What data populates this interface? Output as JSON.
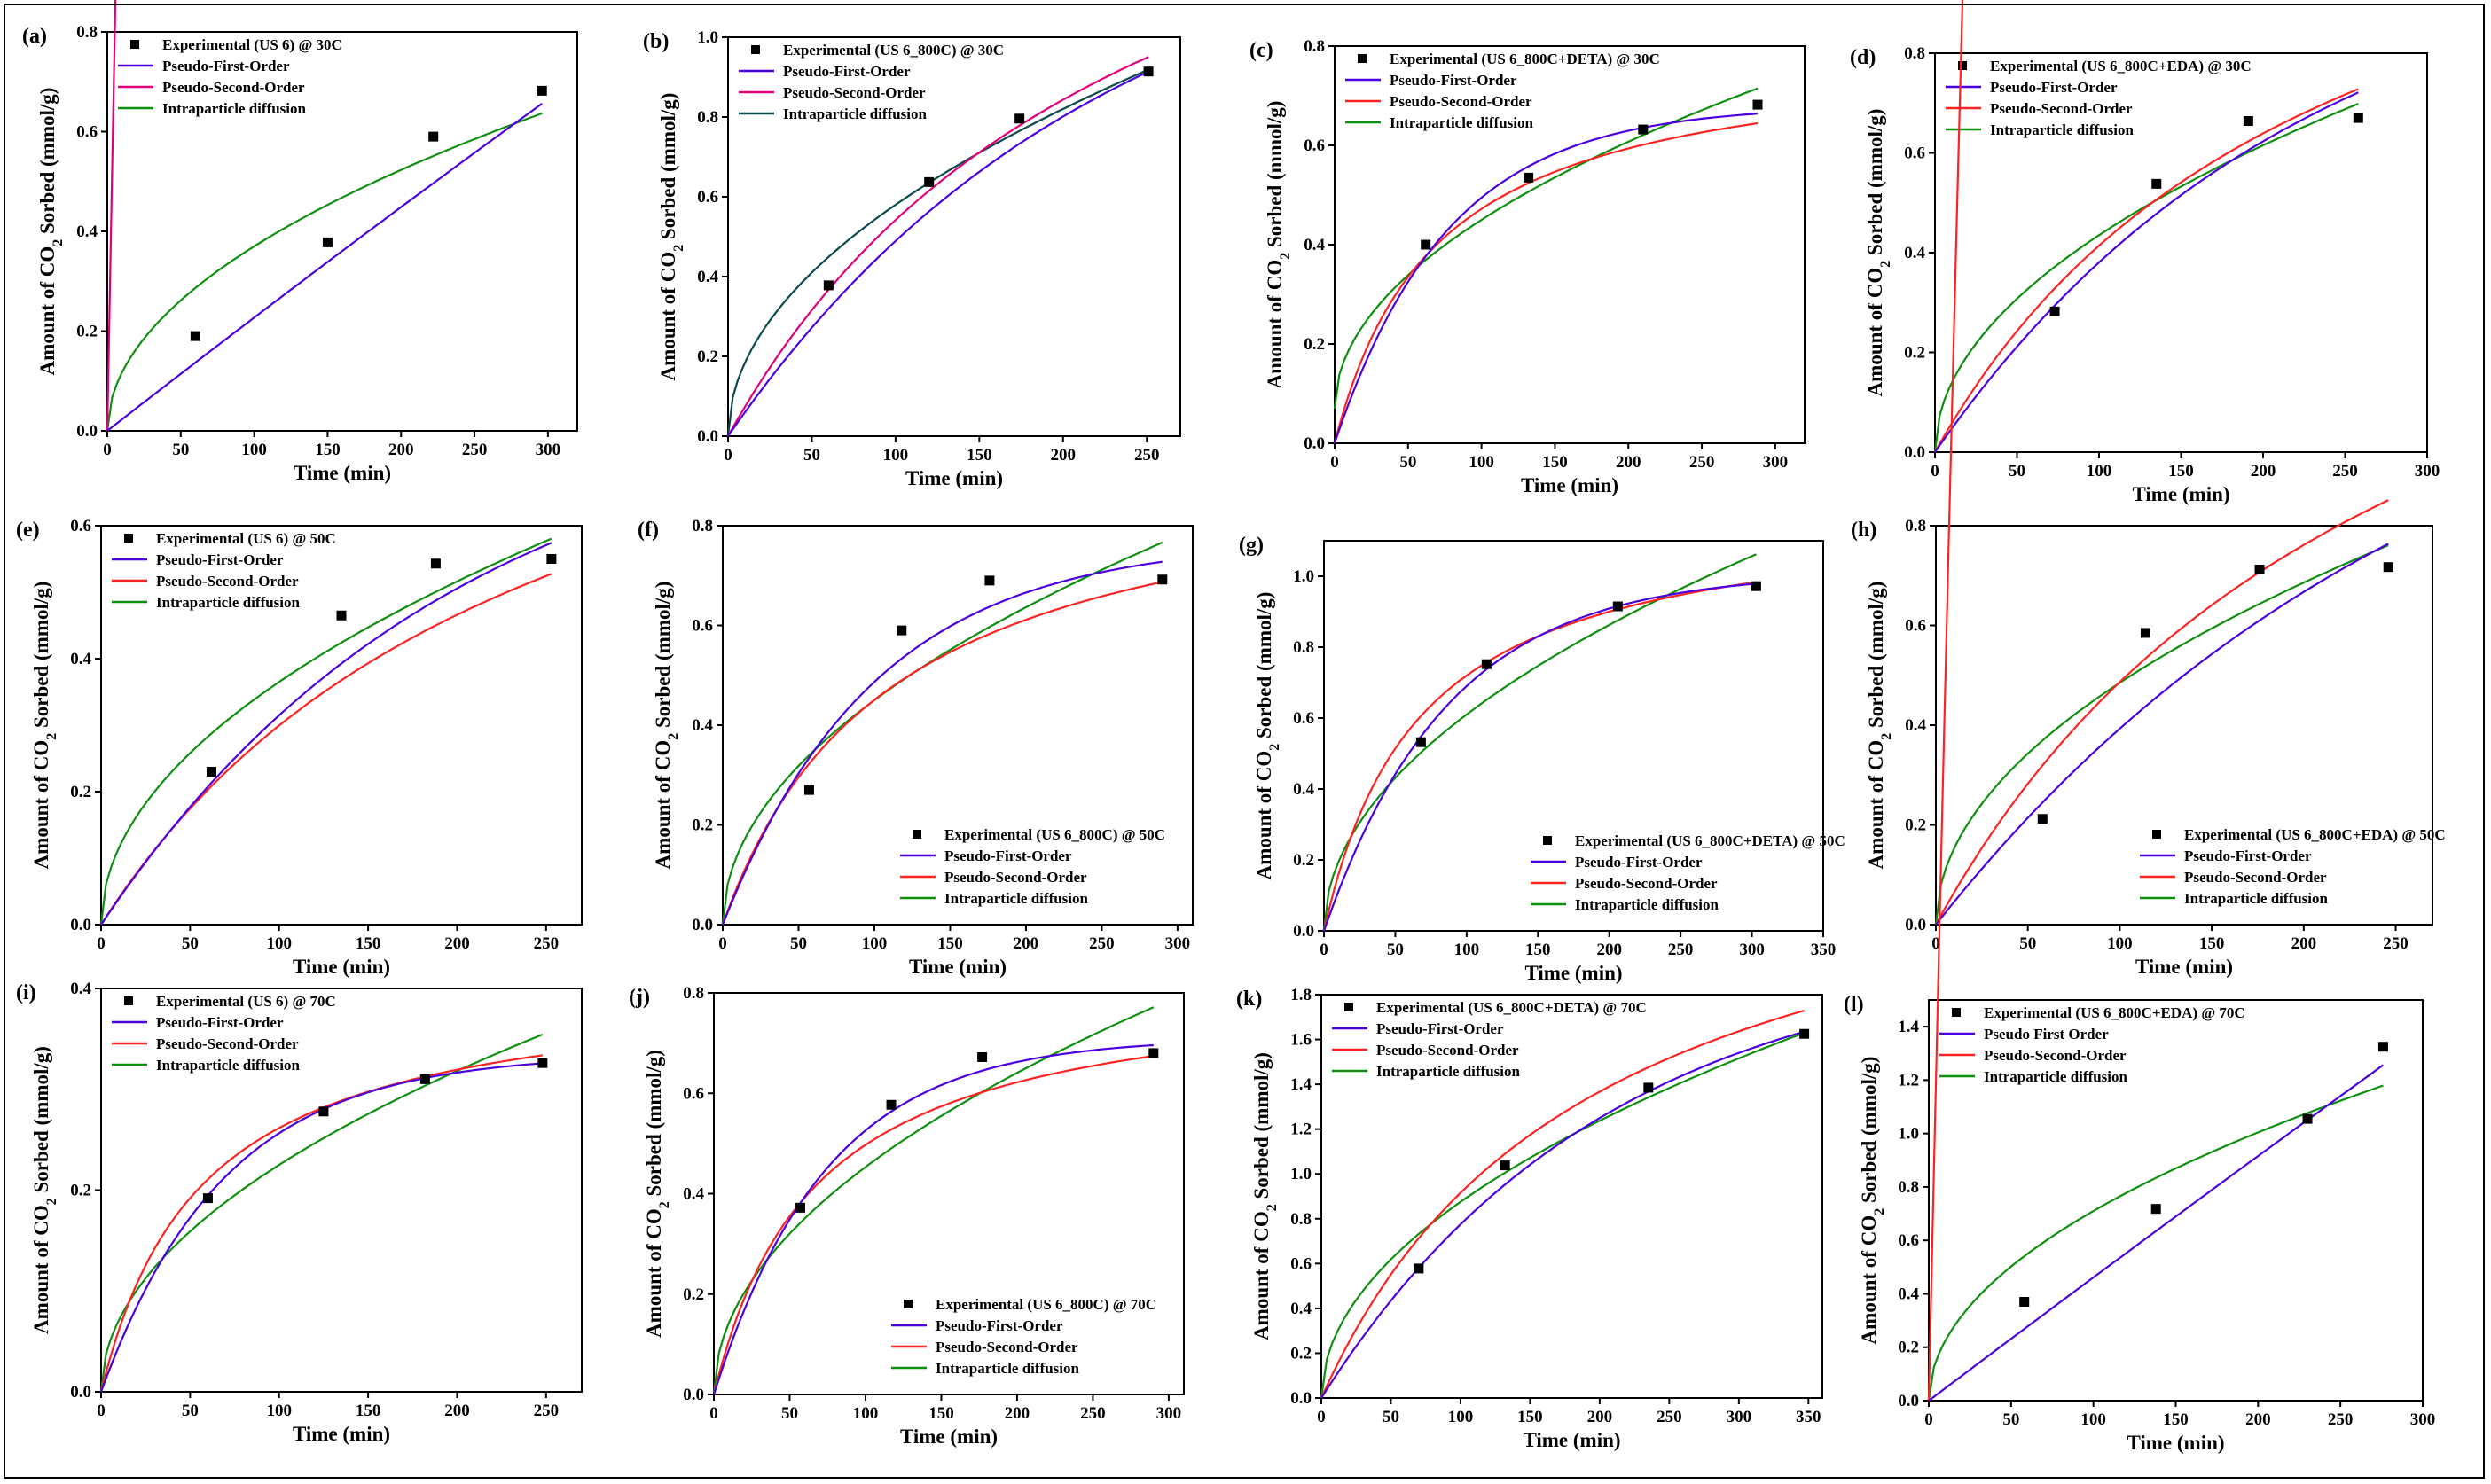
{
  "colors": {
    "experimental": "#000000",
    "pfo": "#4b00e0",
    "pso_red": "#ff2222",
    "pso_magenta": "#e0007a",
    "ipd_green": "#0f8f0f",
    "ipd_teal": "#0b4a4a"
  },
  "chart_data": [
    {
      "panel": "(a)",
      "type": "line",
      "xlabel": "Time (min)",
      "ylabel": "Amount of CO2 Sorbed (mmol/g)",
      "xlim": [
        0,
        320
      ],
      "ylim": [
        0,
        0.8
      ],
      "xticks": [
        0,
        50,
        100,
        150,
        200,
        250,
        300
      ],
      "yticks": [
        0.0,
        0.2,
        0.4,
        0.6,
        0.8
      ],
      "legend_pos": "top-left",
      "legend": [
        "Experimental (US 6) @ 30C",
        "Pseudo-First-Order",
        "Pseudo-Second-Order",
        "Intraparticle diffusion"
      ],
      "points": [
        [
          60,
          0.19
        ],
        [
          150,
          0.378
        ],
        [
          222,
          0.59
        ],
        [
          296,
          0.682
        ]
      ],
      "models": {
        "pfo": {
          "qe": 9.2,
          "k": 0.00025,
          "color": "pfo"
        },
        "pso": {
          "qe": 40,
          "k": 0.0001,
          "color": "pso_magenta"
        },
        "ipd": {
          "kid": 0.037,
          "c": 0,
          "color": "ipd_green"
        }
      },
      "tmax": 296
    },
    {
      "panel": "(b)",
      "type": "line",
      "xlabel": "Time (min)",
      "ylabel": "Amount of CO2 Sorbed (mmol/g)",
      "xlim": [
        0,
        270
      ],
      "ylim": [
        0,
        1.0
      ],
      "xticks": [
        0,
        50,
        100,
        150,
        200,
        250
      ],
      "yticks": [
        0.0,
        0.2,
        0.4,
        0.6,
        0.8,
        1.0
      ],
      "legend_pos": "top-left",
      "legend": [
        "Experimental (US 6_800C) @ 30C",
        "Pseudo-First-Order",
        "Pseudo-Second-Order",
        "Intraparticle diffusion"
      ],
      "points": [
        [
          60,
          0.378
        ],
        [
          120,
          0.637
        ],
        [
          174,
          0.796
        ],
        [
          251,
          0.914
        ]
      ],
      "models": {
        "pfo": {
          "qe": 1.35,
          "k": 0.0045,
          "color": "pfo"
        },
        "pso": {
          "qe": 1.9,
          "k": 0.0021,
          "color": "pso_magenta"
        },
        "ipd": {
          "kid": 0.058,
          "c": 0,
          "color": "ipd_teal"
        }
      },
      "tmax": 251
    },
    {
      "panel": "(c)",
      "type": "line",
      "xlabel": "Time (min)",
      "ylabel": "Amount of CO2 Sorbed (mmol/g)",
      "xlim": [
        0,
        320
      ],
      "ylim": [
        0,
        0.8
      ],
      "xticks": [
        0,
        50,
        100,
        150,
        200,
        250,
        300
      ],
      "yticks": [
        0.0,
        0.2,
        0.4,
        0.6,
        0.8
      ],
      "legend_pos": "top-left",
      "legend": [
        "Experimental (US 6_800C+DETA) @ 30C",
        "Pseudo-First-Order",
        "Pseudo-Second-Order",
        "Intraparticle diffusion"
      ],
      "points": [
        [
          62,
          0.4
        ],
        [
          132,
          0.535
        ],
        [
          210,
          0.632
        ],
        [
          288,
          0.682
        ]
      ],
      "models": {
        "pfo": {
          "qe": 0.68,
          "k": 0.013,
          "color": "pfo"
        },
        "pso": {
          "qe": 0.8,
          "k": 0.018,
          "color": "pso_red"
        },
        "ipd": {
          "kid": 0.038,
          "c": 0.07,
          "color": "ipd_green"
        }
      },
      "tmax": 288
    },
    {
      "panel": "(d)",
      "type": "line",
      "xlabel": "Time (min)",
      "ylabel": "Amount of CO2 Sorbed (mmol/g)",
      "xlim": [
        0,
        300
      ],
      "ylim": [
        0,
        0.8
      ],
      "xticks": [
        0,
        50,
        100,
        150,
        200,
        250,
        300
      ],
      "yticks": [
        0.0,
        0.2,
        0.4,
        0.6,
        0.8
      ],
      "legend_pos": "top-left",
      "legend": [
        "Experimental (US 6_800C+EDA) @ 30C",
        "Pseudo-First-Order",
        "Pseudo-Second-Order",
        "Intraparticle diffusion"
      ],
      "points": [
        [
          73,
          0.282
        ],
        [
          135,
          0.538
        ],
        [
          191,
          0.664
        ],
        [
          258,
          0.67
        ]
      ],
      "models": {
        "pfo": {
          "qe": 1.05,
          "k": 0.0045,
          "color": "pfo"
        },
        "pso": {
          "qe": 1.4,
          "k": 0.003,
          "color": "pso_red"
        },
        "ipd": {
          "kid": 0.0435,
          "c": 0,
          "color": "ipd_green"
        }
      },
      "tmax": 258
    },
    {
      "panel": "(e)",
      "type": "line",
      "xlabel": "Time (min)",
      "ylabel": "Amount of CO2 Sorbed (mmol/g)",
      "xlim": [
        0,
        270
      ],
      "ylim": [
        0,
        0.6
      ],
      "xticks": [
        0,
        50,
        100,
        150,
        200,
        250
      ],
      "yticks": [
        0.0,
        0.2,
        0.4,
        0.6
      ],
      "legend_pos": "top-left",
      "legend": [
        "Experimental (US 6) @ 50C",
        "Pseudo-First-Order",
        "Pseudo-Second-Order",
        "Intraparticle diffusion"
      ],
      "points": [
        [
          62,
          0.23
        ],
        [
          135,
          0.465
        ],
        [
          188,
          0.543
        ],
        [
          253,
          0.55
        ]
      ],
      "models": {
        "pfo": {
          "qe": 0.8,
          "k": 0.005,
          "color": "pfo"
        },
        "pso": {
          "qe": 1.05,
          "k": 0.0038,
          "color": "pso_red"
        },
        "ipd": {
          "kid": 0.0365,
          "c": 0,
          "color": "ipd_green"
        }
      },
      "tmax": 253
    },
    {
      "panel": "(f)",
      "type": "line",
      "xlabel": "Time (min)",
      "ylabel": "Amount of CO2 Sorbed (mmol/g)",
      "xlim": [
        0,
        310
      ],
      "ylim": [
        0,
        0.8
      ],
      "xticks": [
        0,
        50,
        100,
        150,
        200,
        250,
        300
      ],
      "yticks": [
        0.0,
        0.2,
        0.4,
        0.6,
        0.8
      ],
      "legend_pos": "bottom-right",
      "legend": [
        "Experimental (US 6_800C) @ 50C",
        "Pseudo-First-Order",
        "Pseudo-Second-Order",
        "Intraparticle diffusion"
      ],
      "points": [
        [
          57,
          0.27
        ],
        [
          118,
          0.59
        ],
        [
          176,
          0.69
        ],
        [
          290,
          0.692
        ]
      ],
      "models": {
        "pfo": {
          "qe": 0.77,
          "k": 0.01,
          "color": "pfo"
        },
        "pso": {
          "qe": 0.95,
          "k": 0.0095,
          "color": "pso_red"
        },
        "ipd": {
          "kid": 0.045,
          "c": 0,
          "color": "ipd_green"
        }
      },
      "tmax": 290
    },
    {
      "panel": "(g)",
      "type": "line",
      "xlabel": "Time (min)",
      "ylabel": "Amount of CO2 Sorbed (mmol/g)",
      "xlim": [
        0,
        350
      ],
      "ylim": [
        0,
        1.1
      ],
      "xticks": [
        0,
        50,
        100,
        150,
        200,
        250,
        300,
        350
      ],
      "yticks": [
        0.0,
        0.2,
        0.4,
        0.6,
        0.8,
        1.0
      ],
      "legend_pos": "bottom-right",
      "legend": [
        "Experimental (US 6_800C+DETA) @ 50C",
        "Pseudo-First-Order",
        "Pseudo-Second-Order",
        "Intraparticle diffusion"
      ],
      "points": [
        [
          68,
          0.532
        ],
        [
          114,
          0.752
        ],
        [
          206,
          0.915
        ],
        [
          303,
          0.972
        ]
      ],
      "models": {
        "pfo": {
          "qe": 1.01,
          "k": 0.0115,
          "color": "pfo"
        },
        "pso": {
          "qe": 1.2,
          "k": 0.0125,
          "color": "pso_red"
        },
        "ipd": {
          "kid": 0.061,
          "c": 0,
          "color": "ipd_green"
        }
      },
      "tmax": 303
    },
    {
      "panel": "(h)",
      "type": "line",
      "xlabel": "Time (min)",
      "ylabel": "Amount of CO2 Sorbed (mmol/g)",
      "xlim": [
        0,
        270
      ],
      "ylim": [
        0,
        0.8
      ],
      "xticks": [
        0,
        50,
        100,
        150,
        200,
        250
      ],
      "yticks": [
        0.0,
        0.2,
        0.4,
        0.6,
        0.8
      ],
      "legend_pos": "bottom-right",
      "legend": [
        "Experimental (US 6_800C+EDA) @ 50C",
        "Pseudo-First-Order",
        "Pseudo-Second-Order",
        "Intraparticle diffusion"
      ],
      "points": [
        [
          58,
          0.212
        ],
        [
          114,
          0.585
        ],
        [
          176,
          0.712
        ],
        [
          246,
          0.717
        ]
      ],
      "models": {
        "pfo": {
          "qe": 1.3,
          "k": 0.0036,
          "color": "pfo"
        },
        "pso": {
          "qe": 1.75,
          "k": 0.0022,
          "color": "pso_red"
        },
        "ipd": {
          "kid": 0.0485,
          "c": 0,
          "color": "ipd_green"
        }
      },
      "tmax": 246
    },
    {
      "panel": "(i)",
      "type": "line",
      "xlabel": "Time (min)",
      "ylabel": "Amount of CO2 Sorbed (mmol/g)",
      "xlim": [
        0,
        270
      ],
      "ylim": [
        0,
        0.4
      ],
      "xticks": [
        0,
        50,
        100,
        150,
        200,
        250
      ],
      "yticks": [
        0.0,
        0.2,
        0.4
      ],
      "legend_pos": "top-left",
      "legend": [
        "Experimental (US 6) @ 70C",
        "Pseudo-First-Order",
        "Pseudo-Second-Order",
        "Intraparticle diffusion"
      ],
      "points": [
        [
          60,
          0.192
        ],
        [
          125,
          0.278
        ],
        [
          182,
          0.31
        ],
        [
          248,
          0.326
        ]
      ],
      "models": {
        "pfo": {
          "qe": 0.335,
          "k": 0.0145,
          "color": "pfo"
        },
        "pso": {
          "qe": 0.41,
          "k": 0.043,
          "color": "pso_red"
        },
        "ipd": {
          "kid": 0.0225,
          "c": 0,
          "color": "ipd_green"
        }
      },
      "tmax": 248
    },
    {
      "panel": "(j)",
      "type": "line",
      "xlabel": "Time (min)",
      "ylabel": "Amount of CO2 Sorbed (mmol/g)",
      "xlim": [
        0,
        310
      ],
      "ylim": [
        0,
        0.8
      ],
      "xticks": [
        0,
        50,
        100,
        150,
        200,
        250,
        300
      ],
      "yticks": [
        0.0,
        0.2,
        0.4,
        0.6,
        0.8
      ],
      "legend_pos": "bottom-right",
      "legend": [
        "Experimental (US 6_800C) @ 70C",
        "Pseudo-First-Order",
        "Pseudo-Second-Order",
        "Intraparticle diffusion"
      ],
      "points": [
        [
          57,
          0.372
        ],
        [
          117,
          0.577
        ],
        [
          177,
          0.672
        ],
        [
          290,
          0.68
        ]
      ],
      "models": {
        "pfo": {
          "qe": 0.71,
          "k": 0.0135,
          "color": "pfo"
        },
        "pso": {
          "qe": 0.83,
          "k": 0.018,
          "color": "pso_red"
        },
        "ipd": {
          "kid": 0.0453,
          "c": 0,
          "color": "ipd_green"
        }
      },
      "tmax": 290
    },
    {
      "panel": "(k)",
      "type": "line",
      "xlabel": "Time (min)",
      "ylabel": "Amount of CO2 Sorbed (mmol/g)",
      "xlim": [
        0,
        360
      ],
      "ylim": [
        0,
        1.8
      ],
      "xticks": [
        0,
        50,
        100,
        150,
        200,
        250,
        300,
        350
      ],
      "yticks": [
        0.0,
        0.2,
        0.4,
        0.6,
        0.8,
        1.0,
        1.2,
        1.4,
        1.6,
        1.8
      ],
      "legend_pos": "top-left",
      "legend": [
        "Experimental (US 6_800C+DETA) @ 70C",
        "Pseudo-First-Order",
        "Pseudo-Second-Order",
        "Intraparticle diffusion"
      ],
      "points": [
        [
          70,
          0.578
        ],
        [
          132,
          1.038
        ],
        [
          235,
          1.385
        ],
        [
          347,
          1.625
        ]
      ],
      "models": {
        "pfo": {
          "qe": 2.0,
          "k": 0.0049,
          "color": "pfo"
        },
        "pso": {
          "qe": 2.7,
          "k": 0.0019,
          "color": "pso_red"
        },
        "ipd": {
          "kid": 0.0875,
          "c": 0,
          "color": "ipd_green"
        }
      },
      "tmax": 347
    },
    {
      "panel": "(l)",
      "type": "line",
      "xlabel": "Time (min)",
      "ylabel": "Amount of CO2 Sorbed (mmol/g)",
      "xlim": [
        0,
        300
      ],
      "ylim": [
        0,
        1.5
      ],
      "xticks": [
        0,
        50,
        100,
        150,
        200,
        250,
        300
      ],
      "yticks": [
        0.0,
        0.2,
        0.4,
        0.6,
        0.8,
        1.0,
        1.2,
        1.4
      ],
      "legend_pos": "top-left",
      "legend": [
        "Experimental (US 6_800C+EDA) @ 70C",
        "Pseudo First Order",
        "Pseudo-Second-Order",
        "Intraparticle diffusion"
      ],
      "points": [
        [
          58,
          0.37
        ],
        [
          138,
          0.718
        ],
        [
          230,
          1.055
        ],
        [
          276,
          1.325
        ]
      ],
      "models": {
        "pfo": {
          "qe": 30,
          "k": 0.000155,
          "color": "pfo"
        },
        "pso": {
          "qe": 60,
          "k": 7.8e-05,
          "color": "pso_red"
        },
        "ipd": {
          "kid": 0.071,
          "c": 0,
          "color": "ipd_green"
        }
      },
      "tmax": 276
    }
  ]
}
